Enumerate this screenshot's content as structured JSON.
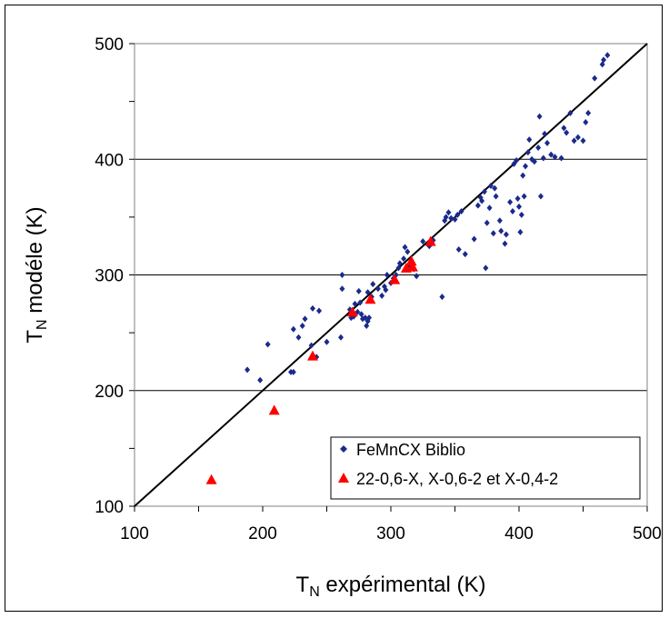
{
  "chart_data": {
    "type": "scatter",
    "title": "",
    "xlabel_main": "T",
    "xlabel_sub": "N",
    "xlabel_rest": " expérimental (K)",
    "ylabel_main": "T",
    "ylabel_sub": "N",
    "ylabel_rest": " modéle (K)",
    "xlim": [
      100,
      500
    ],
    "ylim": [
      100,
      500
    ],
    "xticks": [
      "100",
      "200",
      "300",
      "400",
      "500"
    ],
    "yticks": [
      "100",
      "200",
      "300",
      "400",
      "500"
    ],
    "grid": "horizontal",
    "legend_position": "bottom-right",
    "reference_line": {
      "from": [
        100,
        100
      ],
      "to": [
        500,
        500
      ],
      "color": "#000000"
    },
    "series": [
      {
        "name": "FeMnCX Biblio",
        "marker": "diamond",
        "color": "#1a2a8c",
        "points": [
          [
            188,
            218
          ],
          [
            198,
            209
          ],
          [
            204,
            240
          ],
          [
            222,
            216
          ],
          [
            224,
            216
          ],
          [
            224,
            253
          ],
          [
            228,
            246
          ],
          [
            231,
            256
          ],
          [
            233,
            262
          ],
          [
            238,
            239
          ],
          [
            239,
            271
          ],
          [
            242,
            229
          ],
          [
            244,
            269
          ],
          [
            250,
            242
          ],
          [
            261,
            246
          ],
          [
            262,
            288
          ],
          [
            262,
            300
          ],
          [
            268,
            270
          ],
          [
            269,
            263
          ],
          [
            271,
            264
          ],
          [
            272,
            275
          ],
          [
            274,
            268
          ],
          [
            275,
            286
          ],
          [
            276,
            276
          ],
          [
            277,
            266
          ],
          [
            278,
            262
          ],
          [
            280,
            263
          ],
          [
            281,
            256
          ],
          [
            282,
            260
          ],
          [
            282,
            285
          ],
          [
            283,
            263
          ],
          [
            285,
            281
          ],
          [
            286,
            292
          ],
          [
            290,
            288
          ],
          [
            293,
            282
          ],
          [
            295,
            290
          ],
          [
            296,
            287
          ],
          [
            297,
            300
          ],
          [
            300,
            293
          ],
          [
            302,
            297
          ],
          [
            304,
            300
          ],
          [
            306,
            306
          ],
          [
            307,
            310
          ],
          [
            310,
            314
          ],
          [
            311,
            324
          ],
          [
            313,
            320
          ],
          [
            315,
            308
          ],
          [
            318,
            305
          ],
          [
            320,
            299
          ],
          [
            325,
            329
          ],
          [
            330,
            325
          ],
          [
            333,
            330
          ],
          [
            340,
            281
          ],
          [
            342,
            347
          ],
          [
            343,
            350
          ],
          [
            345,
            354
          ],
          [
            347,
            349
          ],
          [
            350,
            348
          ],
          [
            352,
            352
          ],
          [
            353,
            322
          ],
          [
            355,
            355
          ],
          [
            358,
            318
          ],
          [
            365,
            331
          ],
          [
            368,
            360
          ],
          [
            370,
            367
          ],
          [
            371,
            364
          ],
          [
            373,
            372
          ],
          [
            374,
            306
          ],
          [
            375,
            345
          ],
          [
            377,
            358
          ],
          [
            378,
            377
          ],
          [
            380,
            336
          ],
          [
            381,
            375
          ],
          [
            382,
            368
          ],
          [
            385,
            347
          ],
          [
            386,
            338
          ],
          [
            389,
            327
          ],
          [
            390,
            335
          ],
          [
            393,
            363
          ],
          [
            395,
            355
          ],
          [
            396,
            396
          ],
          [
            398,
            399
          ],
          [
            399,
            366
          ],
          [
            400,
            359
          ],
          [
            401,
            337
          ],
          [
            402,
            352
          ],
          [
            403,
            386
          ],
          [
            404,
            368
          ],
          [
            405,
            394
          ],
          [
            407,
            406
          ],
          [
            408,
            417
          ],
          [
            410,
            400
          ],
          [
            412,
            398
          ],
          [
            415,
            410
          ],
          [
            416,
            437
          ],
          [
            417,
            368
          ],
          [
            419,
            401
          ],
          [
            420,
            422
          ],
          [
            422,
            414
          ],
          [
            425,
            404
          ],
          [
            428,
            402
          ],
          [
            433,
            401
          ],
          [
            435,
            427
          ],
          [
            437,
            423
          ],
          [
            440,
            440
          ],
          [
            443,
            416
          ],
          [
            446,
            419
          ],
          [
            450,
            416
          ],
          [
            452,
            432
          ],
          [
            454,
            440
          ],
          [
            459,
            470
          ],
          [
            465,
            482
          ],
          [
            466,
            486
          ],
          [
            469,
            490
          ]
        ]
      },
      {
        "name": "22-0,6-X, X-0,6-2 et X-0,4-2",
        "marker": "triangle",
        "color": "#ff0000",
        "points": [
          [
            160,
            123
          ],
          [
            209,
            183
          ],
          [
            239,
            230
          ],
          [
            270,
            268
          ],
          [
            284,
            279
          ],
          [
            303,
            296
          ],
          [
            312,
            306
          ],
          [
            316,
            312
          ],
          [
            317,
            307
          ],
          [
            331,
            329
          ]
        ]
      }
    ]
  }
}
